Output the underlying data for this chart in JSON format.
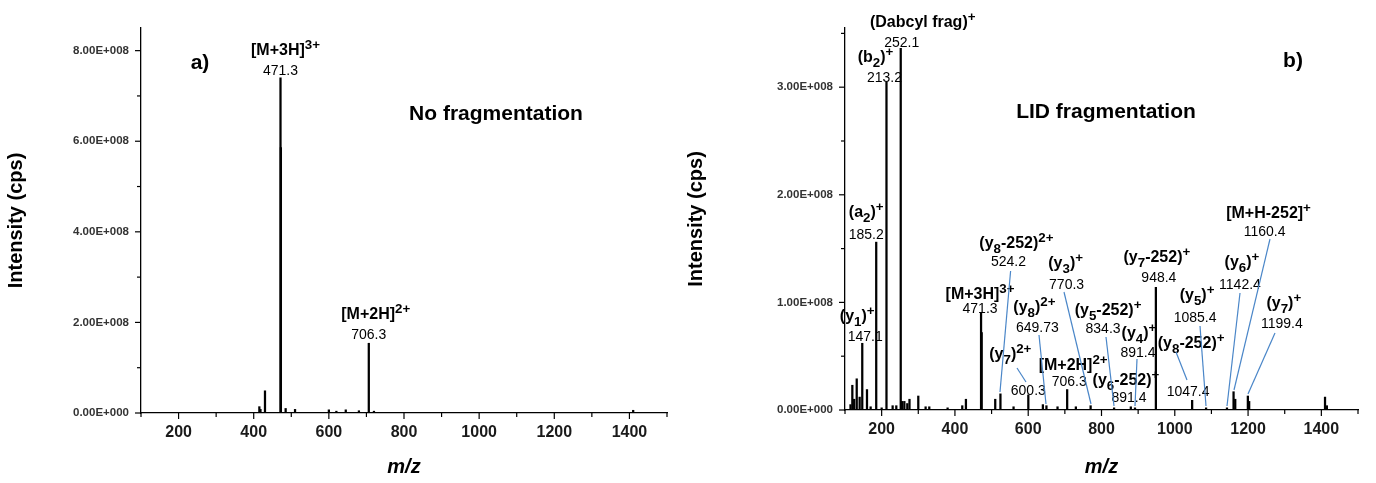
{
  "chart_data": [
    {
      "type": "bar",
      "xlabel": "m/z",
      "ylabel": "Intensity (cps)",
      "color": "#000000",
      "x": [
        262,
        370,
        415,
        418,
        430,
        471.3,
        472.3,
        485,
        510,
        600,
        620,
        645,
        680,
        706.3,
        720,
        1410
      ],
      "values": [
        1000000,
        1000000,
        14000000,
        8000000,
        49000000,
        740000000,
        586000000,
        10000000,
        8000000,
        7000000,
        4000000,
        7000000,
        5000000,
        154000000,
        4000000,
        6000000
      ],
      "xlim": [
        100,
        1500
      ],
      "xticks": [
        {
          "value": 100,
          "label": null
        },
        200,
        {
          "value": 300,
          "label": null
        },
        400,
        {
          "value": 500,
          "label": null
        },
        600,
        {
          "value": 700,
          "label": null
        },
        800,
        {
          "value": 900,
          "label": null
        },
        1000,
        {
          "value": 1100,
          "label": null
        },
        1200,
        {
          "value": 1300,
          "label": null
        },
        1400,
        {
          "value": 1500,
          "label": null
        }
      ],
      "ylim": [
        0,
        850000000
      ],
      "yticks": [
        {
          "value": 0,
          "label": "0.00E+000"
        },
        {
          "value": 100000000,
          "label": null
        },
        {
          "value": 200000000,
          "label": "2.00E+008"
        },
        {
          "value": 300000000,
          "label": null
        },
        {
          "value": 400000000,
          "label": "4.00E+008"
        },
        {
          "value": 500000000,
          "label": null
        },
        {
          "value": 600000000,
          "label": "6.00E+008"
        },
        {
          "value": 700000000,
          "label": null
        },
        {
          "value": 800000000,
          "label": "8.00E+008"
        }
      ],
      "annotations": [
        "a)",
        "No fragmentation",
        {
          "text": "[M+3H]$^{3+}$",
          "x": 471.3,
          "y": 740000000
        },
        {
          "text": "471.3",
          "x": 471.3,
          "y": 740000000
        },
        {
          "text": "[M+2H]$^{2+}$",
          "x": 706.3,
          "y": 154000000
        },
        {
          "text": "706.3",
          "x": 706.3,
          "y": 154000000
        }
      ]
    },
    {
      "type": "bar",
      "xlabel": "m/z",
      "ylabel": "Intensity (cps)",
      "color": "#000000",
      "x": [
        115,
        120,
        125,
        132,
        140,
        147.1,
        160,
        170,
        185.2,
        200,
        213.2,
        230,
        240,
        252.1,
        256,
        262,
        270,
        276,
        300,
        320,
        330,
        380,
        420,
        430,
        471.3,
        473,
        510,
        524.2,
        560,
        600.3,
        640,
        649.73,
        680,
        706.3,
        730,
        770.3,
        834.3,
        880,
        891.4,
        948.4,
        1047.4,
        1085.4,
        1142.4,
        1160.4,
        1165,
        1199.4,
        1203,
        1410,
        1415
      ],
      "values": [
        5000000,
        23000000,
        10000000,
        29000000,
        12000000,
        62000000,
        19000000,
        3000000,
        156000000,
        2000000,
        305000000,
        4000000,
        4000000,
        336000000,
        8000000,
        8000000,
        6000000,
        10000000,
        13000000,
        3000000,
        3000000,
        2000000,
        4000000,
        10000000,
        90000000,
        72000000,
        10000000,
        15000000,
        3000000,
        14000000,
        5000000,
        4000000,
        3000000,
        19000000,
        3000000,
        4000000,
        2000000,
        3000000,
        2000000,
        114000000,
        9000000,
        2000000,
        2000000,
        17000000,
        10000000,
        13000000,
        8000000,
        12000000,
        4000000
      ],
      "xlim": [
        100,
        1500
      ],
      "xticks": [
        {
          "value": 100,
          "label": null
        },
        200,
        {
          "value": 300,
          "label": null
        },
        400,
        {
          "value": 500,
          "label": null
        },
        600,
        {
          "value": 700,
          "label": null
        },
        800,
        {
          "value": 900,
          "label": null
        },
        1000,
        {
          "value": 1100,
          "label": null
        },
        1200,
        {
          "value": 1300,
          "label": null
        },
        1400,
        {
          "value": 1500,
          "label": null
        }
      ],
      "ylim": [
        0,
        355000000
      ],
      "yticks": [
        {
          "value": 0,
          "label": "0.00E+000"
        },
        {
          "value": 50000000,
          "label": null
        },
        {
          "value": 100000000,
          "label": "1.00E+008"
        },
        {
          "value": 150000000,
          "label": null
        },
        {
          "value": 200000000,
          "label": "2.00E+008"
        },
        {
          "value": 250000000,
          "label": null
        },
        {
          "value": 300000000,
          "label": "3.00E+008"
        },
        {
          "value": 350000000,
          "label": null
        }
      ],
      "annotations": [
        "b)",
        "LID fragmentation",
        {
          "text": "(Dabcyl frag)$^{+}$",
          "x": 252.1,
          "y": 336000000
        },
        {
          "text": "252.1",
          "x": 252.1,
          "y": 336000000
        },
        {
          "text": "(b$_{2}$)$^{+}$",
          "x": 213.2,
          "y": 305000000
        },
        {
          "text": "213.2",
          "x": 213.2,
          "y": 305000000
        },
        {
          "text": "(a$_{2}$)$^{+}$",
          "x": 185.2,
          "y": 156000000
        },
        {
          "text": "185.2",
          "x": 185.2,
          "y": 156000000
        },
        {
          "text": "(y$_{1}$)$^{+}$",
          "x": 147.1,
          "y": 62000000
        },
        {
          "text": "147.1",
          "x": 147.1,
          "y": 62000000
        },
        {
          "text": "[M+3H]$^{3+}$",
          "x": 471.3,
          "y": 90000000
        },
        {
          "text": "471.3",
          "x": 471.3,
          "y": 90000000
        },
        {
          "text": "(y$_{8}$-252)$^{2+}$",
          "x": 524.2,
          "y": 15000000
        },
        {
          "text": "524.2",
          "x": 524.2,
          "y": 15000000
        },
        {
          "text": "(y$_{7}$)$^{2+}$",
          "x": 600.3,
          "y": 14000000
        },
        {
          "text": "600.3",
          "x": 600.3,
          "y": 14000000
        },
        {
          "text": "(y$_{8}$)$^{2+}$",
          "x": 649.73,
          "y": 4000000
        },
        {
          "text": "649.73",
          "x": 649.73,
          "y": 4000000
        },
        {
          "text": "[M+2H]$^{2+}$",
          "x": 706.3,
          "y": 19000000
        },
        {
          "text": "706.3",
          "x": 706.3,
          "y": 19000000
        },
        {
          "text": "(y$_{3}$)$^{+}$",
          "x": 770.3,
          "y": 4000000
        },
        {
          "text": "770.3",
          "x": 770.3,
          "y": 4000000
        },
        {
          "text": "(y$_{5}$-252)$^{+}$",
          "x": 834.3,
          "y": 2000000
        },
        {
          "text": "834.3",
          "x": 834.3,
          "y": 2000000
        },
        {
          "text": "(y$_{4}$)$^{+}$",
          "x": 891.4,
          "y": 2000000
        },
        {
          "text": "891.4",
          "x": 891.4,
          "y": 2000000
        },
        {
          "text": "(y$_{6}$-252)$^{+}$",
          "x": 891.4,
          "y": 2000000
        },
        {
          "text": "891.4",
          "x": 891.4,
          "y": 2000000
        },
        {
          "text": "(y$_{7}$-252)$^{+}$",
          "x": 948.4,
          "y": 114000000
        },
        {
          "text": "948.4",
          "x": 948.4,
          "y": 114000000
        },
        {
          "text": "(y$_{8}$-252)$^{+}$",
          "x": 1047.4,
          "y": 9000000
        },
        {
          "text": "1047.4",
          "x": 1047.4,
          "y": 9000000
        },
        {
          "text": "(y$_{5}$)$^{+}$",
          "x": 1085.4,
          "y": 2000000
        },
        {
          "text": "1085.4",
          "x": 1085.4,
          "y": 2000000
        },
        {
          "text": "(y$_{6}$)$^{+}$",
          "x": 1142.4,
          "y": 2000000
        },
        {
          "text": "1142.4",
          "x": 1142.4,
          "y": 2000000
        },
        {
          "text": "[M+H-252]$^{+}$",
          "x": 1160.4,
          "y": 17000000
        },
        {
          "text": "1160.4",
          "x": 1160.4,
          "y": 17000000
        },
        {
          "text": "(y$_{7}$)$^{+}$",
          "x": 1199.4,
          "y": 13000000
        },
        {
          "text": "1199.4",
          "x": 1199.4,
          "y": 13000000
        }
      ]
    }
  ]
}
